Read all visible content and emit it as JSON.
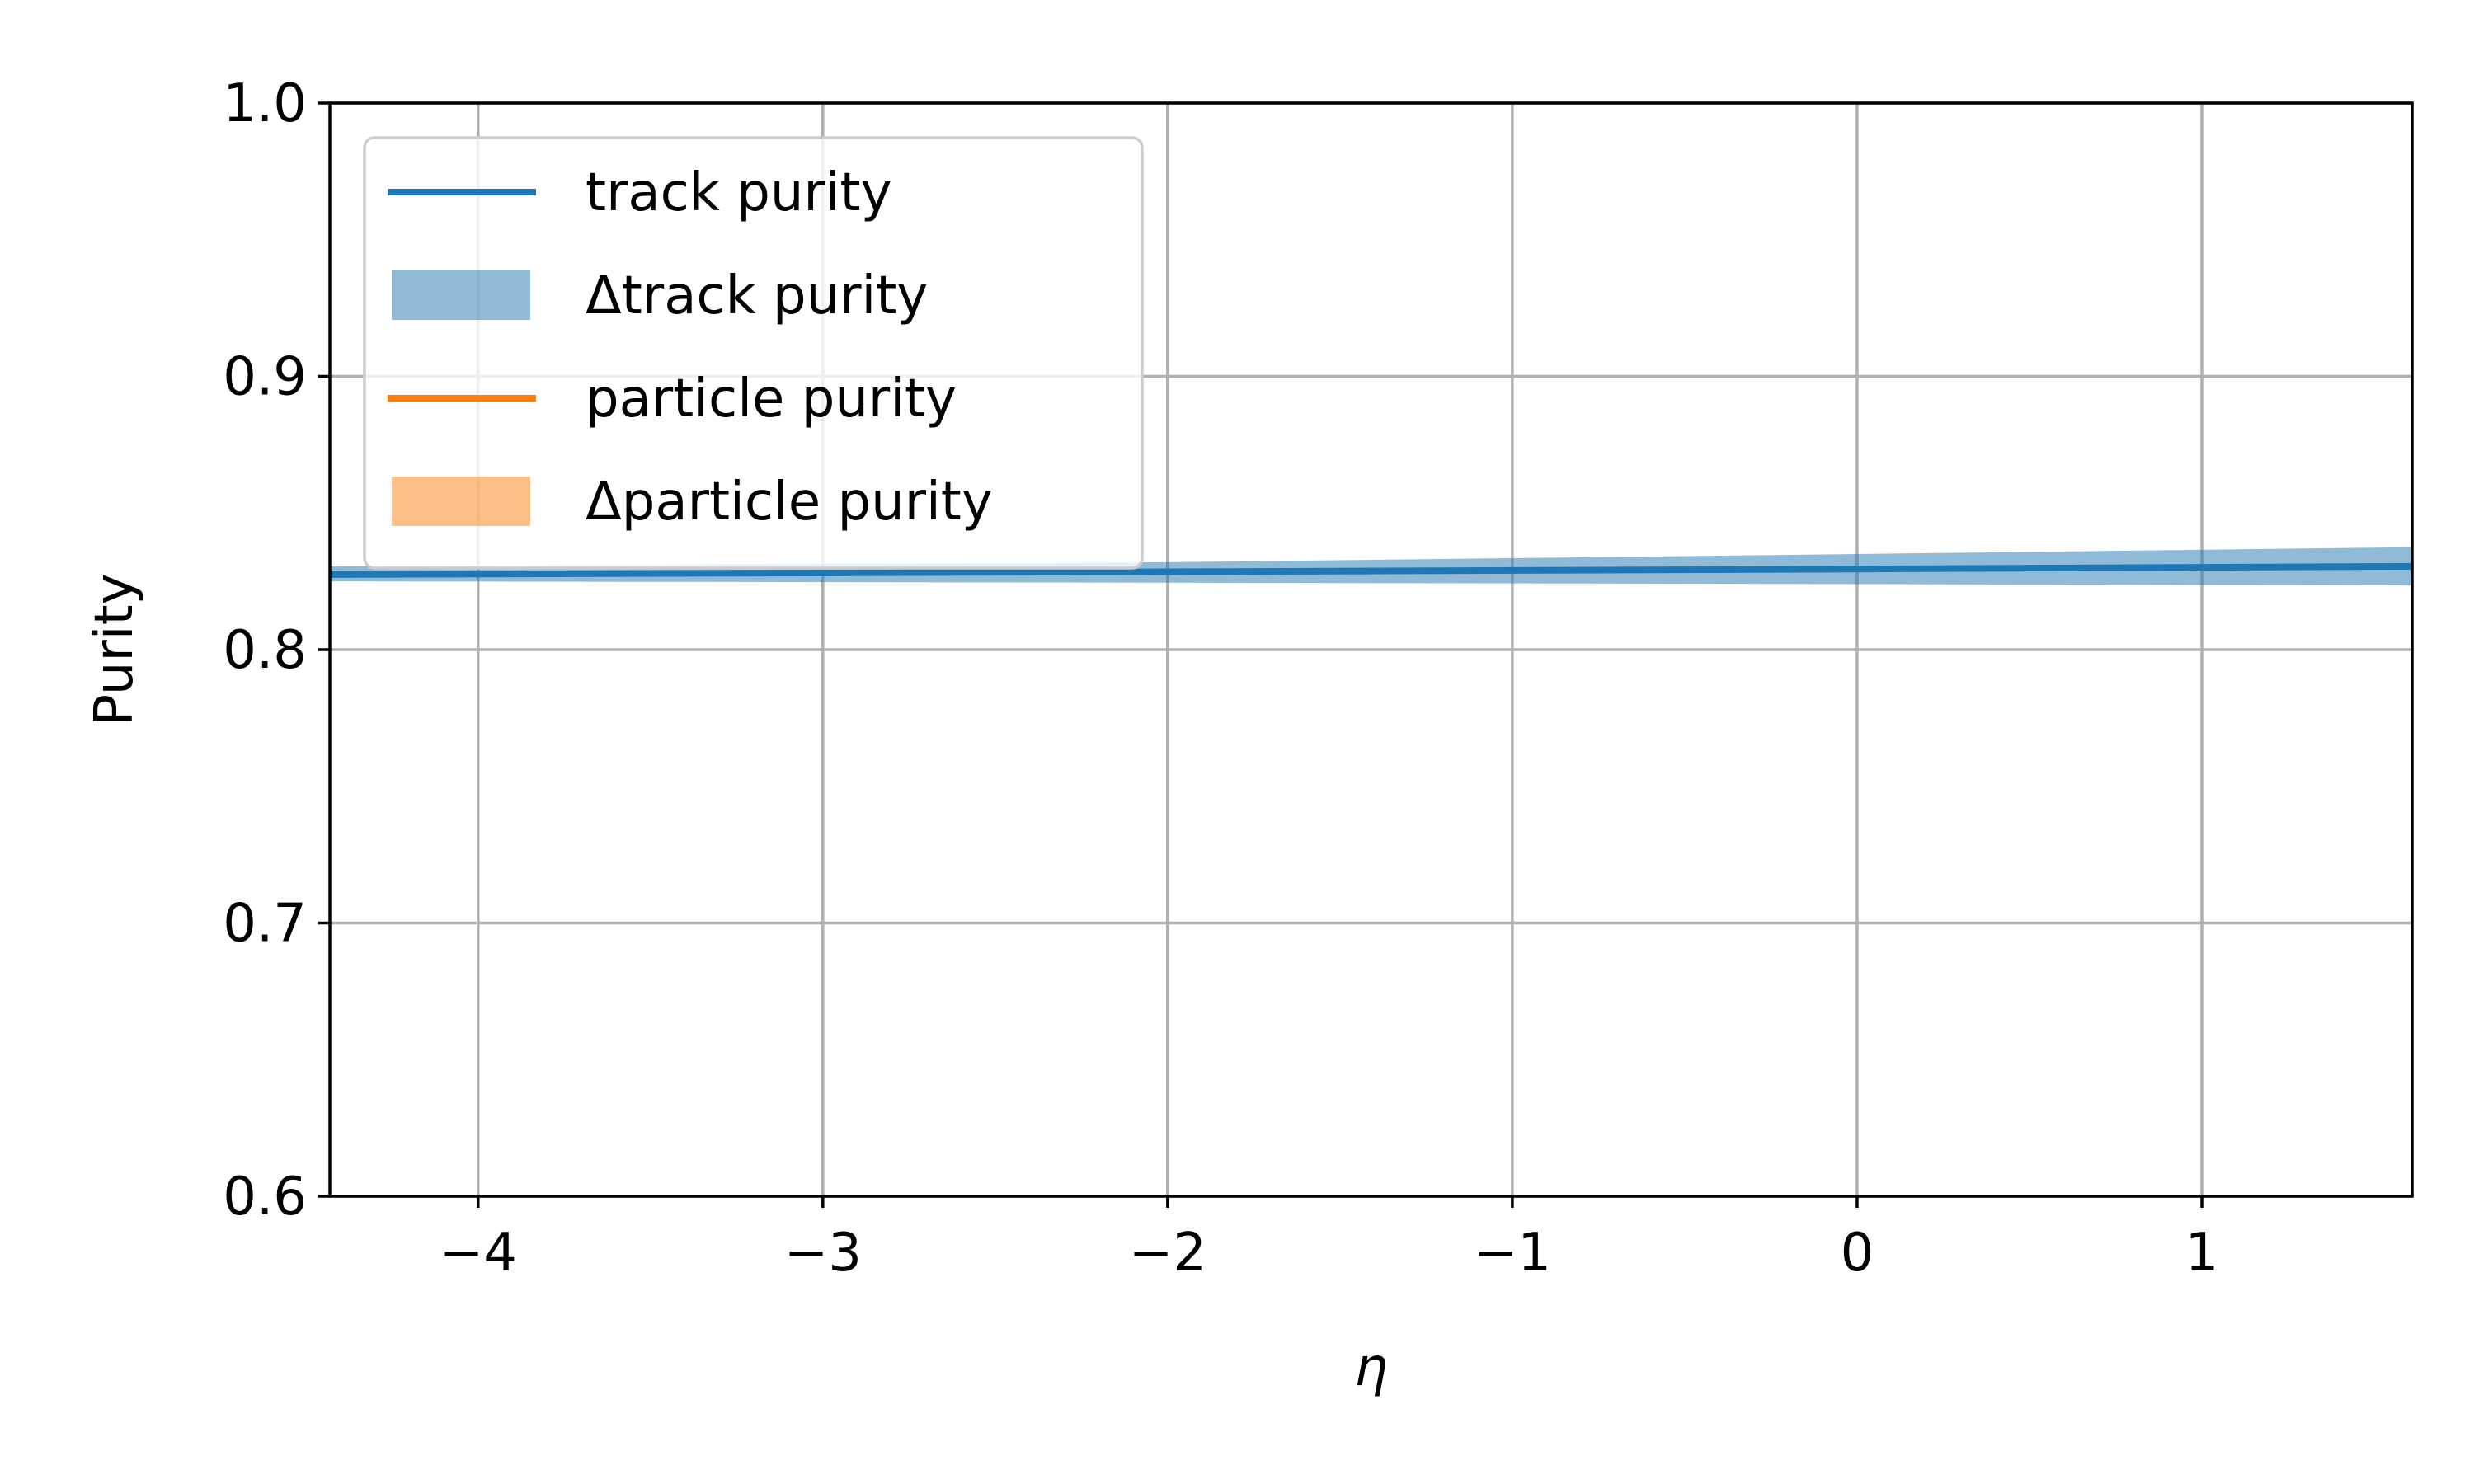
{
  "chart_data": {
    "type": "line",
    "xlabel": "η",
    "ylabel": "Purity",
    "xlim": [
      -4.43,
      1.61
    ],
    "ylim": [
      0.6,
      1.0
    ],
    "xticks": [
      -4,
      -3,
      -2,
      -1,
      0,
      1
    ],
    "xtick_labels": [
      "−4",
      "−3",
      "−2",
      "−1",
      "0",
      "1"
    ],
    "yticks": [
      0.6,
      0.7,
      0.8,
      0.9,
      1.0
    ],
    "ytick_labels": [
      "0.6",
      "0.7",
      "0.8",
      "0.9",
      "1.0"
    ],
    "grid": true,
    "legend_placement": "upper-left",
    "series": [
      {
        "name": "track purity",
        "kind": "line",
        "color": "#1f77b4",
        "x": [
          -4.43,
          -2,
          0,
          1.61
        ],
        "y": [
          0.8275,
          0.8285,
          0.8295,
          0.8305
        ]
      },
      {
        "name": "Δtrack purity",
        "kind": "band",
        "color": "#1f77b4",
        "alpha": 0.5,
        "x": [
          -4.43,
          -2,
          0,
          1.61
        ],
        "lower": [
          0.825,
          0.8245,
          0.824,
          0.8235
        ],
        "upper": [
          0.8305,
          0.832,
          0.835,
          0.8375
        ]
      },
      {
        "name": "particle purity",
        "kind": "line",
        "color": "#ff7f0e",
        "x": [],
        "y": []
      },
      {
        "name": "Δparticle purity",
        "kind": "band",
        "color": "#ff7f0e",
        "alpha": 0.5,
        "x": [],
        "lower": [],
        "upper": []
      }
    ]
  }
}
